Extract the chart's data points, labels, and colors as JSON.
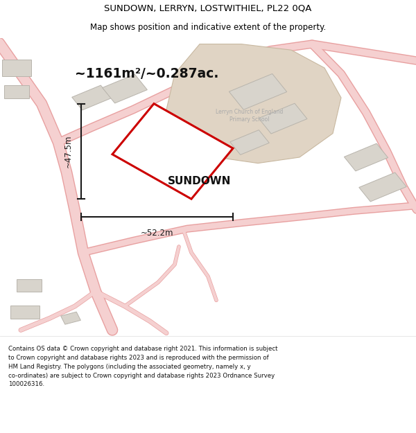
{
  "title_line1": "SUNDOWN, LERRYN, LOSTWITHIEL, PL22 0QA",
  "title_line2": "Map shows position and indicative extent of the property.",
  "area_text": "~1161m²/~0.287ac.",
  "property_label": "SUNDOWN",
  "dim_width": "~52.2m",
  "dim_height": "~47.5m",
  "school_label": "Lerryn Church of England\nPrimary School",
  "footer_lines": [
    "Contains OS data © Crown copyright and database right 2021. This information is subject",
    "to Crown copyright and database rights 2023 and is reproduced with the permission of",
    "HM Land Registry. The polygons (including the associated geometry, namely x, y",
    "co-ordinates) are subject to Crown copyright and database rights 2023 Ordnance Survey",
    "100026316."
  ],
  "bg_color": "#ffffff",
  "map_bg_color": "#f8f8f6",
  "road_fill": "#f5d0d0",
  "road_edge": "#e8a0a0",
  "road_thin_fill": "#f5d0d0",
  "road_thin_edge": "#e8a0a0",
  "property_fill": "#ffffff",
  "property_edge": "#cc0000",
  "school_fill": "#e0d4c4",
  "school_edge": "#c8b8a0",
  "building_fill": "#d8d4cc",
  "building_edge": "#b8b4ac",
  "dim_color": "#1a1a1a",
  "title_color": "#000000",
  "footer_color": "#111111",
  "school_text_color": "#aaaaaa",
  "area_text_color": "#111111"
}
